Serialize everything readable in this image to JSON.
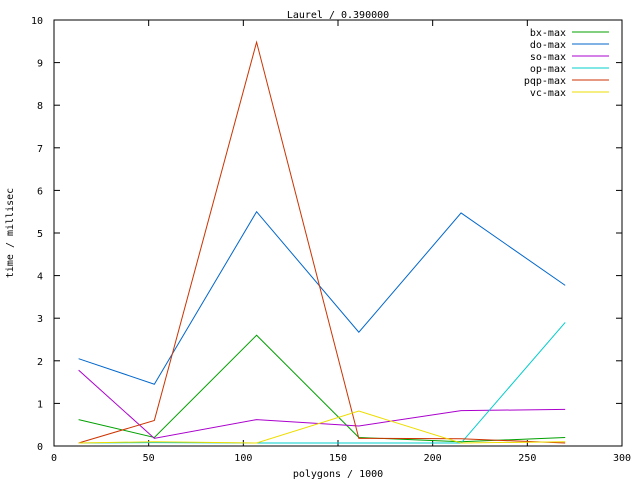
{
  "chart_data": {
    "type": "line",
    "title": "Laurel / 0.390000",
    "xlabel": "polygons / 1000",
    "ylabel": "time / millisec",
    "xlim": [
      0,
      300
    ],
    "ylim": [
      0,
      10
    ],
    "x_ticks": [
      0,
      50,
      100,
      150,
      200,
      250,
      300
    ],
    "y_ticks": [
      0,
      1,
      2,
      3,
      4,
      5,
      6,
      7,
      8,
      9,
      10
    ],
    "grid": false,
    "legend_position": "top-right",
    "x": [
      13,
      53,
      107,
      161,
      215,
      270
    ],
    "series": [
      {
        "name": "bx-max",
        "color": "#00a000",
        "values": [
          0.62,
          0.2,
          2.6,
          0.2,
          0.1,
          0.2
        ]
      },
      {
        "name": "do-max",
        "color": "#0066cc",
        "values": [
          2.05,
          1.45,
          5.5,
          2.67,
          5.47,
          3.77
        ]
      },
      {
        "name": "so-max",
        "color": "#aa00cc",
        "values": [
          1.78,
          0.18,
          0.62,
          0.47,
          0.83,
          0.86
        ]
      },
      {
        "name": "op-max",
        "color": "#00cccc",
        "values": [
          0.07,
          0.08,
          0.07,
          0.07,
          0.07,
          2.9
        ]
      },
      {
        "name": "pqp-max",
        "color": "#cc3300",
        "values": [
          0.07,
          0.6,
          9.48,
          0.18,
          0.17,
          0.07
        ]
      },
      {
        "name": "vc-max",
        "color": "#eedd00",
        "values": [
          0.07,
          0.1,
          0.07,
          0.82,
          0.07,
          0.1
        ]
      }
    ]
  }
}
